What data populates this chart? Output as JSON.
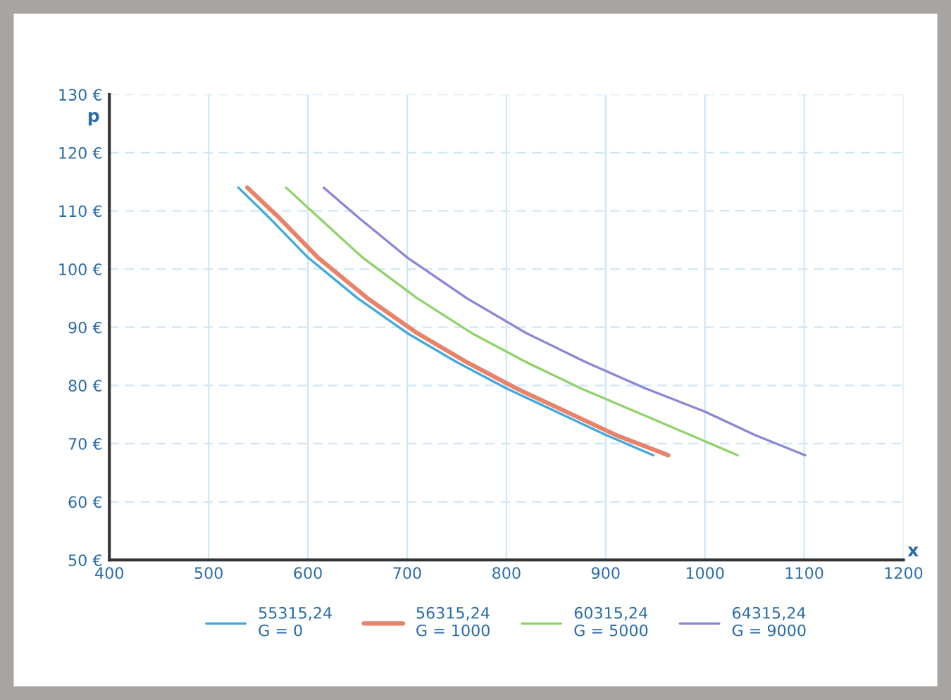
{
  "chart_data": {
    "type": "line",
    "xlabel": "x",
    "ylabel": "p",
    "xlim": [
      400,
      1200
    ],
    "xticks": [
      400,
      500,
      600,
      700,
      800,
      900,
      1000,
      1100,
      1200
    ],
    "ylim": [
      50,
      130
    ],
    "yticks": [
      {
        "value": 50,
        "label": "50 €"
      },
      {
        "value": 60,
        "label": "60 €"
      },
      {
        "value": 70,
        "label": "70 €"
      },
      {
        "value": 80,
        "label": "80 €"
      },
      {
        "value": 90,
        "label": "90 €"
      },
      {
        "value": 100,
        "label": "100 €"
      },
      {
        "value": 110,
        "label": "110 €"
      },
      {
        "value": 120,
        "label": "120 €"
      },
      {
        "value": 130,
        "label": "130 €"
      }
    ],
    "grid": true,
    "legend": "bottom",
    "marker": "none",
    "line_style": "solid",
    "series": [
      {
        "name": "55315,24\nG = 0",
        "color": "#3fa9e0",
        "x": [
          530,
          560,
          600,
          650,
          700,
          750,
          800,
          850,
          900,
          948
        ],
        "values": [
          114,
          109,
          102,
          95,
          89,
          84,
          79.5,
          75.5,
          71.5,
          68
        ]
      },
      {
        "name": "56315,24\nG = 1000",
        "color": "#e8836a",
        "x": [
          539,
          570,
          610,
          660,
          710,
          760,
          810,
          860,
          910,
          963
        ],
        "values": [
          114,
          109,
          102,
          95,
          89,
          84,
          79.5,
          75.5,
          71.5,
          68
        ]
      },
      {
        "name": "60315,24\nG = 5000",
        "color": "#8fd36a",
        "x": [
          578,
          610,
          655,
          710,
          765,
          820,
          875,
          930,
          985,
          1033
        ],
        "values": [
          114,
          109,
          102,
          95,
          89,
          84,
          79.5,
          75.5,
          71.5,
          68
        ]
      },
      {
        "name": "64315,24\nG = 9000",
        "color": "#8a86d8",
        "x": [
          616,
          650,
          700,
          760,
          820,
          880,
          940,
          1000,
          1050,
          1101
        ],
        "values": [
          114,
          109,
          102,
          95,
          89,
          84,
          79.5,
          75.5,
          71.5,
          68
        ]
      }
    ]
  }
}
